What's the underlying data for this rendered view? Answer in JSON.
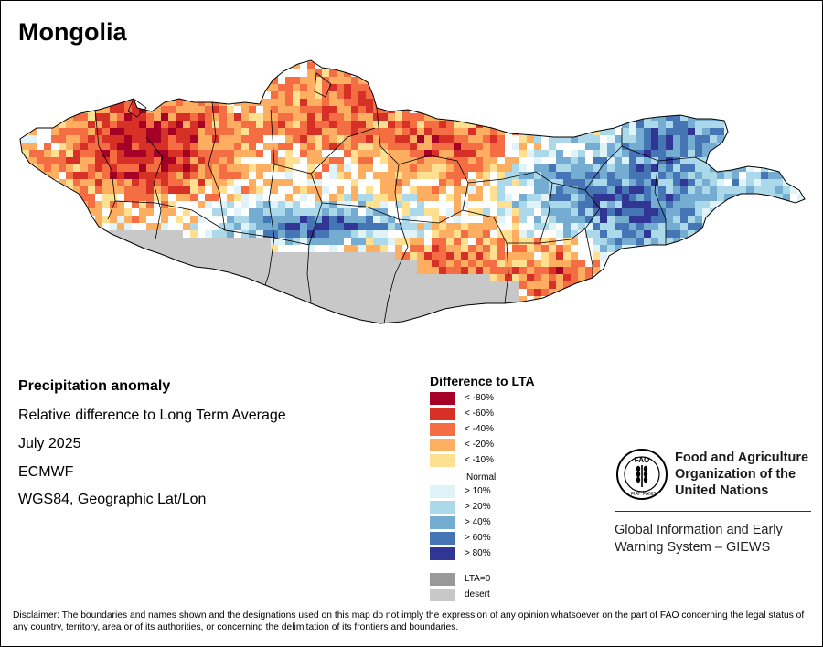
{
  "title": "Mongolia",
  "info": {
    "heading": "Precipitation anomaly",
    "line1": "Relative difference to Long Term Average",
    "line2": "July 2025",
    "line3": "ECMWF",
    "line4": "WGS84, Geographic Lat/Lon"
  },
  "legend": {
    "title": "Difference to LTA",
    "normal_label": "Normal",
    "items": [
      {
        "label": "< -80%",
        "color": "#a50026"
      },
      {
        "label": "< -60%",
        "color": "#d73027"
      },
      {
        "label": "< -40%",
        "color": "#f46d43"
      },
      {
        "label": "< -20%",
        "color": "#fdae61"
      },
      {
        "label": "< -10%",
        "color": "#fee090"
      },
      {
        "label": "> 10%",
        "color": "#e0f3f8"
      },
      {
        "label": "> 20%",
        "color": "#abd9e9"
      },
      {
        "label": "> 40%",
        "color": "#74add1"
      },
      {
        "label": "> 60%",
        "color": "#4575b4"
      },
      {
        "label": "> 80%",
        "color": "#313695"
      },
      {
        "label": "LTA=0",
        "color": "#999999"
      },
      {
        "label": "desert",
        "color": "#c8c8c8"
      }
    ]
  },
  "organization": {
    "name_line1": "Food and Agriculture",
    "name_line2": "Organization of the",
    "name_line3": "United Nations",
    "system_line1": "Global Information and Early",
    "system_line2": "Warning System – GIEWS",
    "logo_text": "FAO FIAT PANIS"
  },
  "disclaimer": "Disclaimer: The boundaries and names shown and the designations used on this map do not imply the expression of any opinion whatsoever on the part of FAO concerning the legal status of any country, territory, area or of its authorities, or concerning the delimitation of its frontiers and boundaries."
}
